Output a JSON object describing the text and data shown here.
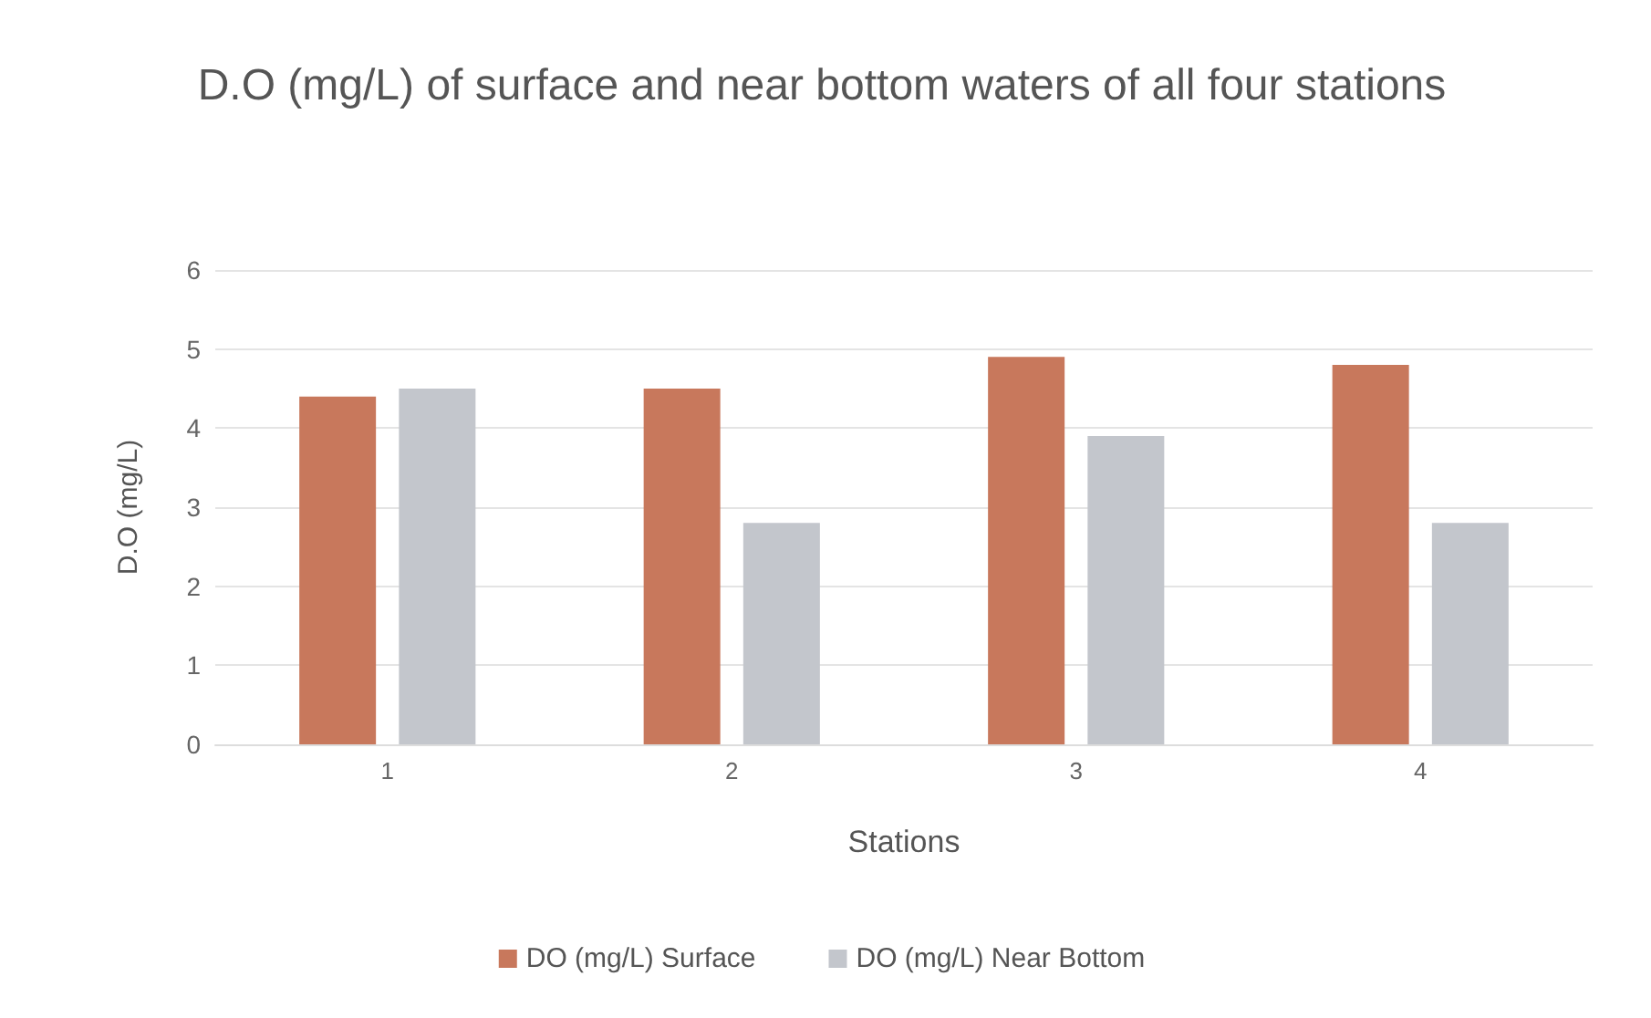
{
  "chart_data": {
    "type": "bar",
    "title": "D.O (mg/L) of surface and near bottom waters of all four stations",
    "xlabel": "Stations",
    "ylabel": "D.O (mg/L)",
    "categories": [
      "1",
      "2",
      "3",
      "4"
    ],
    "series": [
      {
        "name": "DO (mg/L) Surface",
        "color": "#c8785c",
        "values": [
          4.4,
          4.5,
          4.9,
          4.8
        ]
      },
      {
        "name": "DO (mg/L) Near Bottom",
        "color": "#c3c6cc",
        "values": [
          4.5,
          2.8,
          3.9,
          2.8
        ]
      }
    ],
    "ylim": [
      0,
      6
    ],
    "yticks": [
      0,
      1,
      2,
      3,
      4,
      5,
      6
    ],
    "grid": "y",
    "legend": "bottom"
  }
}
